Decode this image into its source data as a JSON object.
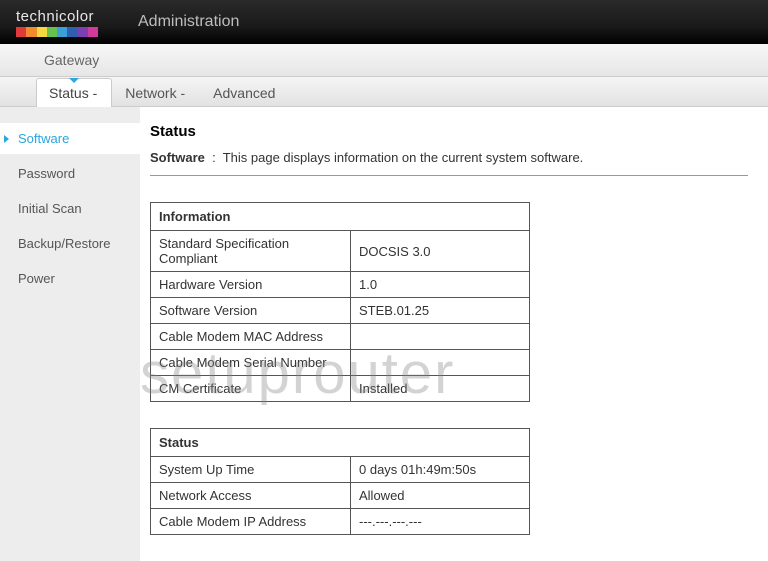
{
  "brand": {
    "name": "technicolor",
    "stripe_colors": [
      "#e03a3a",
      "#f08c2e",
      "#f5d940",
      "#66c24d",
      "#3a9fd6",
      "#2e5fb0",
      "#7a3fb0",
      "#d13a9a"
    ]
  },
  "header": {
    "title": "Administration"
  },
  "breadcrumb": "Gateway",
  "tabs": [
    {
      "label": "Status -",
      "active": true
    },
    {
      "label": "Network -",
      "active": false
    },
    {
      "label": "Advanced",
      "active": false
    }
  ],
  "sidebar": {
    "items": [
      {
        "label": "Software",
        "active": true
      },
      {
        "label": "Password",
        "active": false
      },
      {
        "label": "Initial Scan",
        "active": false
      },
      {
        "label": "Backup/Restore",
        "active": false
      },
      {
        "label": "Power",
        "active": false
      }
    ]
  },
  "page": {
    "title": "Status",
    "desc_label": "Software",
    "desc_text": "This page displays information on the current system software."
  },
  "tables": [
    {
      "heading": "Information",
      "rows": [
        {
          "label": "Standard Specification Compliant",
          "value": "DOCSIS 3.0"
        },
        {
          "label": "Hardware Version",
          "value": "1.0"
        },
        {
          "label": "Software Version",
          "value": "STEB.01.25"
        },
        {
          "label": "Cable Modem MAC Address",
          "value": ""
        },
        {
          "label": "Cable Modem Serial Number",
          "value": ""
        },
        {
          "label": "CM Certificate",
          "value": "Installed"
        }
      ]
    },
    {
      "heading": "Status",
      "rows": [
        {
          "label": "System Up Time",
          "value": "0 days 01h:49m:50s"
        },
        {
          "label": "Network Access",
          "value": "Allowed"
        },
        {
          "label": "Cable Modem IP Address",
          "value": "---.---.---.---"
        }
      ]
    }
  ],
  "watermark": "setuprouter"
}
